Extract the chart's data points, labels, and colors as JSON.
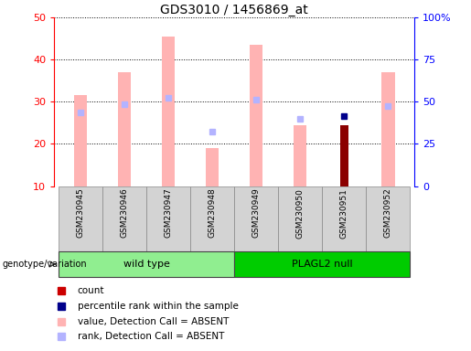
{
  "title": "GDS3010 / 1456869_at",
  "samples": [
    "GSM230945",
    "GSM230946",
    "GSM230947",
    "GSM230948",
    "GSM230949",
    "GSM230950",
    "GSM230951",
    "GSM230952"
  ],
  "value_absent": [
    31.5,
    37.0,
    45.5,
    19.0,
    43.5,
    24.5,
    null,
    37.0
  ],
  "rank_absent": [
    27.5,
    29.5,
    31.0,
    23.0,
    30.5,
    26.0,
    null,
    29.0
  ],
  "count_value": [
    null,
    null,
    null,
    null,
    null,
    null,
    24.5,
    null
  ],
  "percentile_rank": [
    null,
    null,
    null,
    null,
    null,
    null,
    26.5,
    null
  ],
  "ylim_left": [
    10,
    50
  ],
  "ylim_right": [
    0,
    100
  ],
  "yticks_left": [
    10,
    20,
    30,
    40,
    50
  ],
  "ytick_labels_right": [
    "0",
    "25",
    "50",
    "75",
    "100%"
  ],
  "color_value_absent": "#ffb3b3",
  "color_rank_absent": "#b3b3ff",
  "color_count": "#8b0000",
  "color_percentile": "#00008b",
  "group_info": [
    {
      "label": "wild type",
      "start": 0,
      "end": 3,
      "color": "#90ee90"
    },
    {
      "label": "PLAGL2 null",
      "start": 4,
      "end": 7,
      "color": "#00cc00"
    }
  ],
  "legend_items": [
    {
      "label": "count",
      "color": "#cc0000"
    },
    {
      "label": "percentile rank within the sample",
      "color": "#00008b"
    },
    {
      "label": "value, Detection Call = ABSENT",
      "color": "#ffb3b3"
    },
    {
      "label": "rank, Detection Call = ABSENT",
      "color": "#b3b3ff"
    }
  ],
  "bar_width": 0.3
}
